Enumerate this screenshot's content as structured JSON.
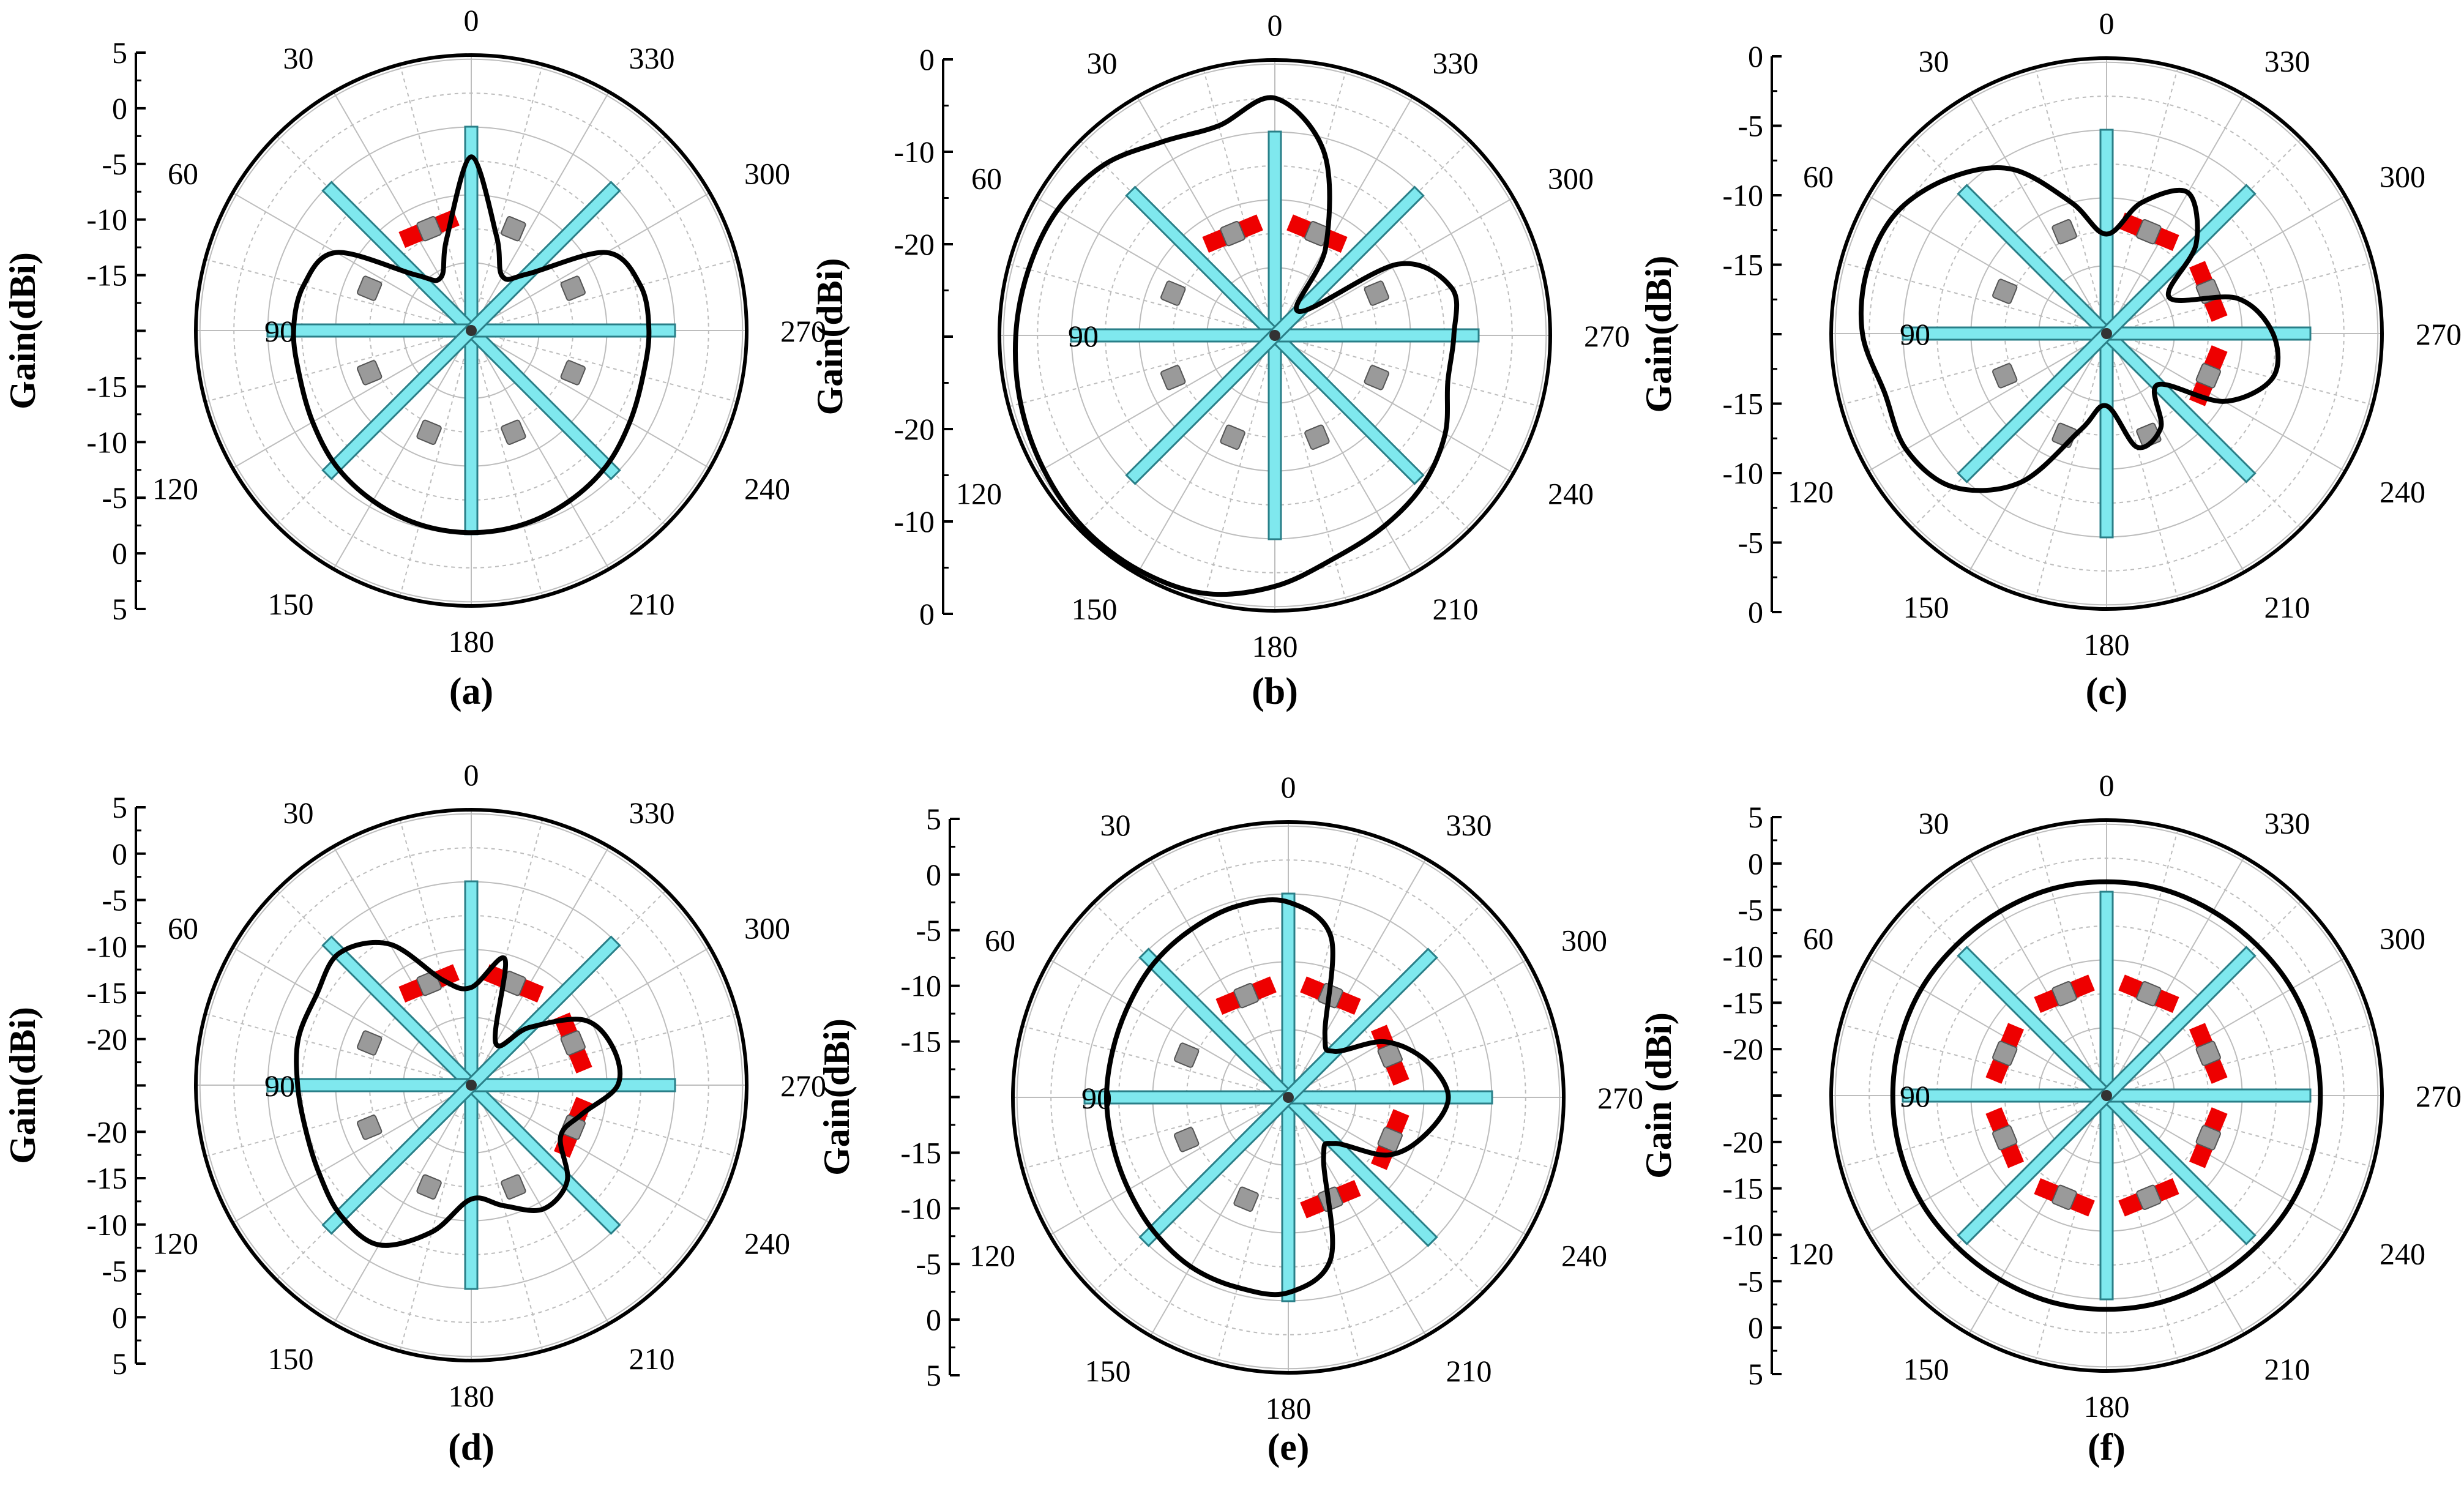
{
  "colors": {
    "pattern": "#000000",
    "dipole_fill": "#7fe8ee",
    "dipole_stroke": "#2a7f88",
    "director_red": "#ee0000",
    "grid": "#bdbdbd",
    "feed_gray": "#9a9a9a"
  },
  "chart_data": [
    {
      "type": "polar-line",
      "caption": "(a)",
      "ylabel": "Gain(dBi)",
      "axis_ticks": [
        "5",
        "0",
        "-5",
        "-10",
        "-15",
        "90",
        "-15",
        "-10",
        "-5",
        "0",
        "5"
      ],
      "angle_labels": [
        "0",
        "30",
        "330",
        "60",
        "300",
        "90",
        "270",
        "120",
        "240",
        "150",
        "210",
        "180"
      ],
      "rlim_dBi": [
        -15,
        5
      ],
      "grid": true,
      "series": [
        {
          "angles_deg": [
            0,
            15,
            30,
            45,
            60,
            75,
            90,
            105,
            120,
            135,
            150,
            165,
            180,
            195,
            210,
            225,
            240,
            255,
            270,
            285,
            300,
            315,
            330,
            345
          ],
          "gain_dBi": [
            -2.2,
            -8,
            -10.5,
            -9.2,
            -3.5,
            -2.2,
            -1.9,
            -1.9,
            -1.5,
            -0.9,
            -0.5,
            -0.2,
            -0.1,
            -0.2,
            -0.5,
            -0.9,
            -1.5,
            -1.9,
            -1.9,
            -2.1,
            -3.5,
            -9.1,
            -10.4,
            -7.8
          ]
        }
      ],
      "dipoles": [
        "gray",
        "gray",
        "gray",
        "gray",
        "red",
        "gray",
        "gray",
        "gray"
      ]
    },
    {
      "type": "polar-line",
      "caption": "(b)",
      "ylabel": "Gain(dBi)",
      "axis_ticks": [
        "0",
        "-10",
        "-20",
        "90",
        "-20",
        "-10",
        "0"
      ],
      "angle_labels": [
        "0",
        "30",
        "330",
        "60",
        "300",
        "90",
        "270",
        "120",
        "240",
        "150",
        "210",
        "180"
      ],
      "rlim_dBi": [
        -20,
        0
      ],
      "grid": true,
      "series": [
        {
          "angles_deg": [
            0,
            15,
            30,
            45,
            60,
            75,
            90,
            105,
            120,
            135,
            150,
            165,
            180,
            195,
            210,
            225,
            240,
            255,
            270,
            285,
            300,
            315,
            330,
            345
          ],
          "gain_dBi": [
            -2.5,
            -4,
            -3.5,
            -2.2,
            -1.5,
            -1.2,
            -0.9,
            -0.6,
            -0.3,
            0,
            0,
            -0.3,
            -1.5,
            -3,
            -3.8,
            -4.5,
            -5.5,
            -6.8,
            -6.8,
            -6.5,
            -9.5,
            -17.5,
            -12.5,
            -6
          ]
        }
      ],
      "dipoles": [
        "gray",
        "gray",
        "gray",
        "red",
        "red",
        "gray",
        "gray",
        "gray"
      ]
    },
    {
      "type": "polar-line",
      "caption": "(c)",
      "ylabel": "Gain(dBi)",
      "axis_ticks": [
        "0",
        "-5",
        "-10",
        "-15",
        "90",
        "-15",
        "-10",
        "-5",
        "0"
      ],
      "angle_labels": [
        "0",
        "30",
        "330",
        "60",
        "300",
        "90",
        "270",
        "120",
        "240",
        "150",
        "210",
        "180"
      ],
      "rlim_dBi": [
        -15,
        0
      ],
      "grid": true,
      "series": [
        {
          "angles_deg": [
            0,
            15,
            30,
            45,
            60,
            75,
            90,
            105,
            120,
            135,
            150,
            165,
            180,
            195,
            210,
            225,
            240,
            255,
            270,
            285,
            300,
            315,
            330,
            345
          ],
          "gain_dBi": [
            -9.5,
            -7.5,
            -4.5,
            -2.8,
            -1.6,
            -1.3,
            -1.5,
            -2.3,
            -2.2,
            -3,
            -5.5,
            -9.5,
            -11,
            -8.5,
            -9,
            -11,
            -7.5,
            -5.5,
            -5.8,
            -7.5,
            -11,
            -8,
            -6,
            -7.5
          ]
        }
      ],
      "dipoles": [
        "gray",
        "red",
        "red",
        "red",
        "gray",
        "gray",
        "gray",
        "gray"
      ]
    },
    {
      "type": "polar-line",
      "caption": "(d)",
      "ylabel": "Gain(dBi)",
      "axis_ticks": [
        "5",
        "0",
        "-5",
        "-10",
        "-15",
        "-20",
        "90",
        "-20",
        "-15",
        "-10",
        "-5",
        "0",
        "5"
      ],
      "angle_labels": [
        "0",
        "30",
        "330",
        "60",
        "300",
        "90",
        "270",
        "120",
        "240",
        "150",
        "210",
        "180"
      ],
      "rlim_dBi": [
        -20,
        5
      ],
      "grid": true,
      "series": [
        {
          "angles_deg": [
            0,
            15,
            30,
            45,
            60,
            75,
            90,
            105,
            120,
            135,
            150,
            165,
            180,
            195,
            210,
            225,
            240,
            255,
            270,
            285,
            300,
            315,
            330,
            345
          ],
          "gain_dBi": [
            -11,
            -10,
            -5,
            -2.8,
            -3.5,
            -3.5,
            -4,
            -4.2,
            -3.8,
            -3,
            -3,
            -6,
            -9.5,
            -8.5,
            -6.8,
            -7.5,
            -10.5,
            -9.5,
            -6.5,
            -6.5,
            -8,
            -12.5,
            -15.5,
            -8
          ]
        }
      ],
      "dipoles": [
        "gray",
        "red",
        "red",
        "red",
        "red",
        "gray",
        "gray",
        "gray"
      ]
    },
    {
      "type": "polar-line",
      "caption": "(e)",
      "ylabel": "Gain(dBi)",
      "axis_ticks": [
        "5",
        "0",
        "-5",
        "-10",
        "-15",
        "90",
        "-15",
        "-10",
        "-5",
        "0",
        "5"
      ],
      "angle_labels": [
        "0",
        "30",
        "330",
        "60",
        "300",
        "90",
        "270",
        "120",
        "240",
        "150",
        "210",
        "180"
      ],
      "rlim_dBi": [
        -15,
        5
      ],
      "grid": true,
      "series": [
        {
          "angles_deg": [
            0,
            15,
            30,
            45,
            60,
            75,
            90,
            105,
            120,
            135,
            150,
            165,
            180,
            195,
            210,
            225,
            240,
            255,
            270,
            285,
            300,
            315,
            330,
            345
          ],
          "gain_dBi": [
            -0.6,
            -0.4,
            -0.7,
            -1.0,
            -1.4,
            -1.6,
            -1.6,
            -1.6,
            -1.4,
            -1.0,
            -0.6,
            -0.5,
            -0.6,
            -2.8,
            -9.8,
            -10.2,
            -6.5,
            -4.5,
            -3.2,
            -4.5,
            -6.8,
            -10.2,
            -9.6,
            -2.8
          ]
        }
      ],
      "dipoles": [
        "red",
        "red",
        "red",
        "red",
        "red",
        "gray",
        "gray",
        "gray"
      ]
    },
    {
      "type": "polar-line",
      "caption": "(f)",
      "ylabel": "Gain  (dBi)",
      "axis_ticks": [
        "5",
        "0",
        "-5",
        "-10",
        "-15",
        "-20",
        "90",
        "-20",
        "-15",
        "-10",
        "-5",
        "0",
        "5"
      ],
      "angle_labels": [
        "0",
        "30",
        "330",
        "60",
        "300",
        "90",
        "270",
        "120",
        "240",
        "150",
        "210",
        "180"
      ],
      "rlim_dBi": [
        -20,
        5
      ],
      "grid": true,
      "series": [
        {
          "angles_deg": [
            0,
            15,
            30,
            45,
            60,
            75,
            90,
            105,
            120,
            135,
            150,
            165,
            180,
            195,
            210,
            225,
            240,
            255,
            270,
            285,
            300,
            315,
            330,
            345
          ],
          "gain_dBi": [
            -0.3,
            -0.3,
            -0.4,
            -0.4,
            -0.3,
            -0.3,
            -0.3,
            -0.3,
            -0.3,
            -0.4,
            -0.4,
            -0.3,
            -0.3,
            -0.3,
            -0.4,
            -0.4,
            -0.3,
            -0.3,
            -0.3,
            -0.3,
            -0.3,
            -0.4,
            -0.4,
            -0.3
          ]
        }
      ],
      "dipoles": [
        "red",
        "red",
        "red",
        "red",
        "red",
        "red",
        "red",
        "red"
      ]
    }
  ]
}
